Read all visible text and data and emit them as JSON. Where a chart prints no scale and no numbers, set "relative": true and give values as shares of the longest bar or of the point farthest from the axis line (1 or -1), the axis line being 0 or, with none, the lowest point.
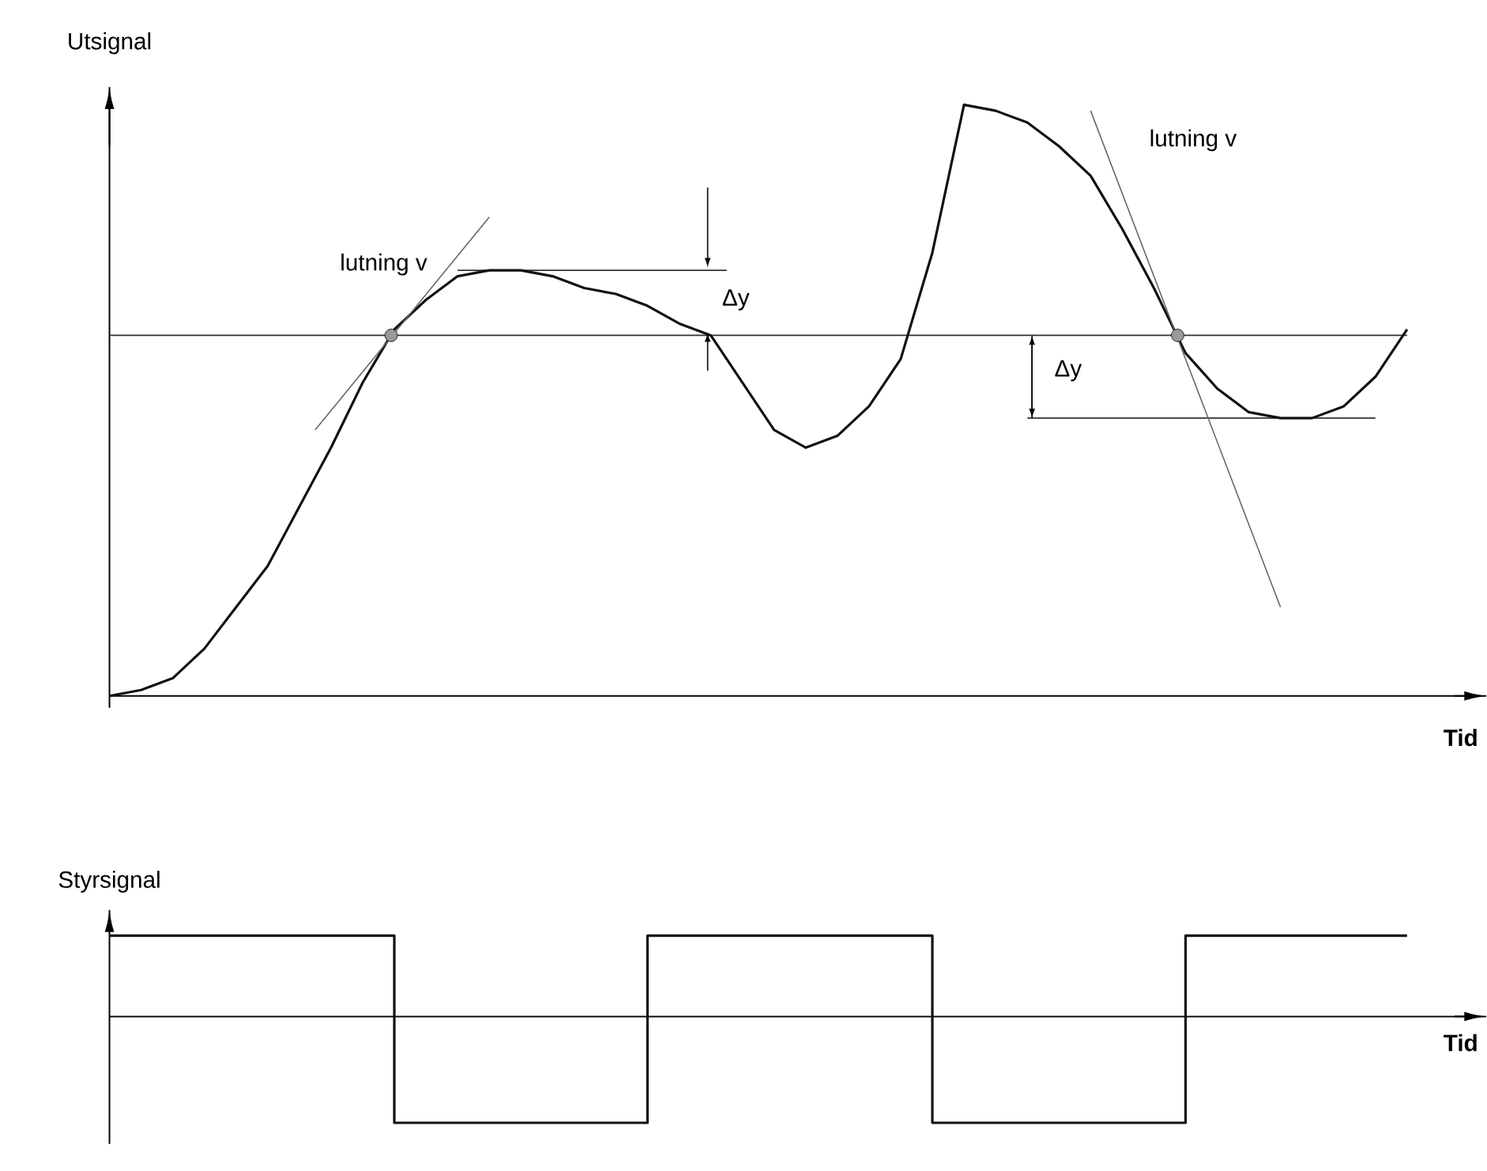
{
  "chart_data": [
    {
      "type": "line",
      "relative": true,
      "ylabel": "Utsignal",
      "xlabel": "Tid",
      "categories": [
        null,
        null,
        null,
        null,
        null,
        null,
        null,
        null,
        null,
        null,
        null,
        null,
        null,
        null,
        null,
        null,
        null,
        null,
        null,
        null,
        null,
        null,
        null,
        null,
        null,
        null,
        null,
        null,
        null,
        null,
        null,
        null,
        null,
        null,
        null,
        null,
        null,
        null,
        null,
        null,
        null,
        null
      ],
      "series": [
        {
          "color": "#111111",
          "values": [
            0,
            0.01,
            0.03,
            0.08,
            0.15,
            0.22,
            0.32,
            0.42,
            0.53,
            0.62,
            0.67,
            0.71,
            0.72,
            0.72,
            0.71,
            0.69,
            0.68,
            0.66,
            0.63,
            0.61,
            0.53,
            0.45,
            0.42,
            0.44,
            0.49,
            0.57,
            0.75,
            1.0,
            0.99,
            0.97,
            0.93,
            0.88,
            0.79,
            0.69,
            0.58,
            0.52,
            0.48,
            0.47,
            0.47,
            0.49,
            0.54,
            0.62
          ]
        }
      ],
      "ref_lines": [
        {
          "axis": "y",
          "value": 0.61,
          "color": "#333333"
        },
        {
          "axis": "y",
          "value": 0.72,
          "color": "#333333"
        },
        {
          "axis": "y",
          "value": 0.47,
          "color": "#333333"
        }
      ],
      "annotations": [
        "lutning v",
        "lutning v",
        "Δy",
        "Δy"
      ]
    },
    {
      "type": "step",
      "relative": true,
      "ylabel": "Styrsignal",
      "xlabel": "Tid",
      "categories": [
        null,
        null,
        null,
        null,
        null,
        null,
        null,
        null,
        null,
        null,
        null,
        null,
        null,
        null,
        null,
        null,
        null,
        null,
        null,
        null,
        null,
        null,
        null,
        null,
        null,
        null,
        null,
        null,
        null,
        null,
        null,
        null,
        null,
        null,
        null,
        null,
        null,
        null,
        null,
        null,
        null,
        null
      ],
      "series": [
        {
          "color": "#111111",
          "values": [
            0.76,
            0.76,
            0.76,
            0.76,
            0.76,
            0.76,
            0.76,
            0.76,
            0.76,
            -1,
            -1,
            -1,
            -1,
            -1,
            -1,
            -1,
            -1,
            0.76,
            0.76,
            0.76,
            0.76,
            0.76,
            0.76,
            0.76,
            0.76,
            0.76,
            -1,
            -1,
            -1,
            -1,
            -1,
            -1,
            -1,
            -1,
            0.76,
            0.76,
            0.76,
            0.76,
            0.76,
            0.76,
            0.76,
            0.76
          ]
        }
      ]
    }
  ]
}
